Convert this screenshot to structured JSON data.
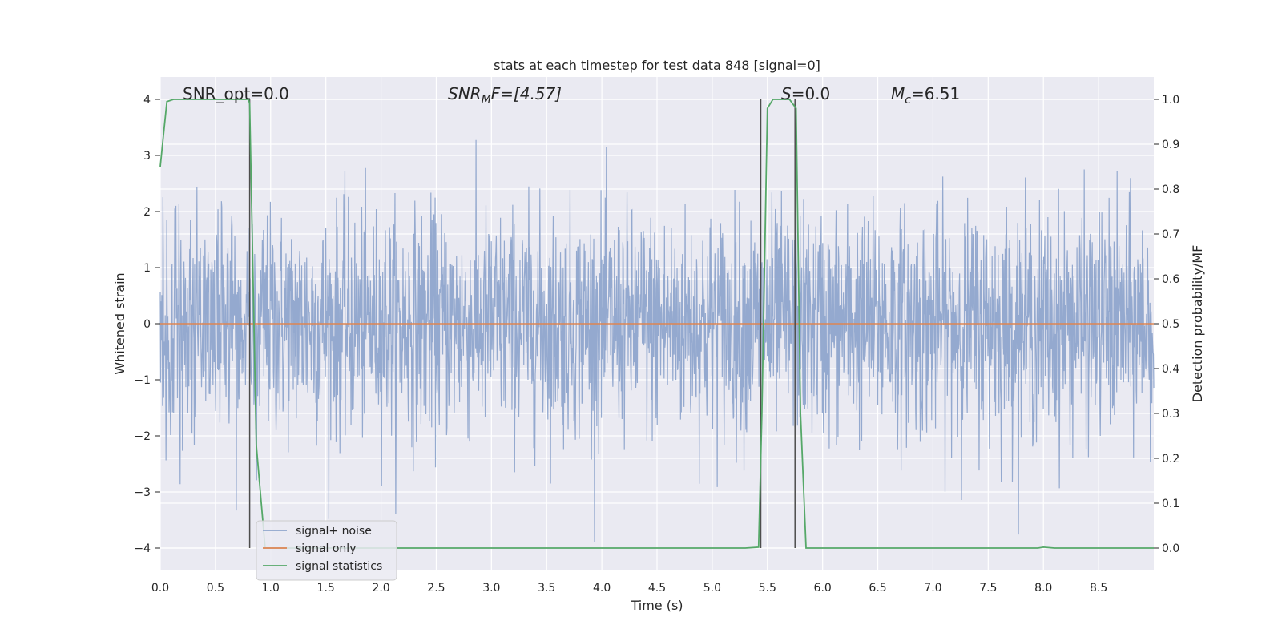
{
  "chart_data": {
    "type": "line",
    "title": "stats at each timestep for test data 848 [signal=0]",
    "xlabel": "Time (s)",
    "ylabel_left": "Whitened strain",
    "ylabel_right": "Detection probability/MF",
    "xlim": [
      0.0,
      9.0
    ],
    "ylim_left": [
      -4.4,
      4.4
    ],
    "ylim_right": [
      -0.05,
      1.05
    ],
    "x_ticks": [
      "0.0",
      "0.5",
      "1.0",
      "1.5",
      "2.0",
      "2.5",
      "3.0",
      "3.5",
      "4.0",
      "4.5",
      "5.0",
      "5.5",
      "6.0",
      "6.5",
      "7.0",
      "7.5",
      "8.0",
      "8.5"
    ],
    "x_tick_values": [
      0,
      0.5,
      1,
      1.5,
      2,
      2.5,
      3,
      3.5,
      4,
      4.5,
      5,
      5.5,
      6,
      6.5,
      7,
      7.5,
      8,
      8.5
    ],
    "yl_ticks": [
      "4",
      "3",
      "2",
      "1",
      "0",
      "−1",
      "−2",
      "−3",
      "−4"
    ],
    "yl_tick_values": [
      4,
      3,
      2,
      1,
      0,
      -1,
      -2,
      -3,
      -4
    ],
    "yr_ticks": [
      "1.0",
      "0.9",
      "0.8",
      "0.7",
      "0.6",
      "0.5",
      "0.4",
      "0.3",
      "0.2",
      "0.1",
      "0.0"
    ],
    "yr_tick_values": [
      1.0,
      0.9,
      0.8,
      0.7,
      0.6,
      0.5,
      0.4,
      0.3,
      0.2,
      0.1,
      0.0
    ],
    "grid": true,
    "legend_position": "lower-left",
    "annotations": {
      "snr_opt": "SNR_opt=0.0",
      "snr_mf_main": "SNR",
      "snr_mf_sub": "M",
      "snr_mf_rest": "F=[4.57]",
      "s_main": "S",
      "s_rest": "=0.0",
      "mc_main": "M",
      "mc_sub": "c",
      "mc_rest": "=6.51"
    },
    "series": [
      {
        "name": "signal+ noise",
        "color": "#8fa5cc",
        "description_values": "whitened noise, typical amplitude within ±1.6, spikes up to about ±4",
        "seed": 848
      },
      {
        "name": "signal only",
        "color": "#dd8452",
        "x": [
          0.0,
          9.0
        ],
        "y": [
          0.0,
          0.0
        ]
      },
      {
        "name": "signal statistics",
        "color": "#55a868",
        "axis": "right",
        "x": [
          0.0,
          0.06,
          0.12,
          0.2,
          0.4,
          0.6,
          0.8,
          0.81,
          0.87,
          0.95,
          1.5,
          2.5,
          3.5,
          4.5,
          5.3,
          5.42,
          5.45,
          5.5,
          5.55,
          5.6,
          5.65,
          5.7,
          5.76,
          5.8,
          5.85,
          6.0,
          7.0,
          7.95,
          8.0,
          8.1,
          9.0
        ],
        "y": [
          0.85,
          0.995,
          1.0,
          1.0,
          1.0,
          1.0,
          1.0,
          0.99,
          0.23,
          0.0,
          0.0,
          0.0,
          0.0,
          0.0,
          0.0,
          0.002,
          0.3,
          0.98,
          1.0,
          1.0,
          1.0,
          1.0,
          0.98,
          0.3,
          0.0,
          0.0,
          0.0,
          0.0,
          0.002,
          0.0,
          0.0
        ]
      }
    ],
    "vertical_markers": [
      {
        "x": 0.81,
        "y_from": -4.0,
        "y_to": 4.0,
        "color": "#4d4d4d"
      },
      {
        "x": 5.44,
        "y_from": -4.0,
        "y_to": 4.0,
        "color": "#4d4d4d"
      },
      {
        "x": 5.75,
        "y_from": -4.0,
        "y_to": 4.0,
        "color": "#4d4d4d"
      }
    ]
  }
}
